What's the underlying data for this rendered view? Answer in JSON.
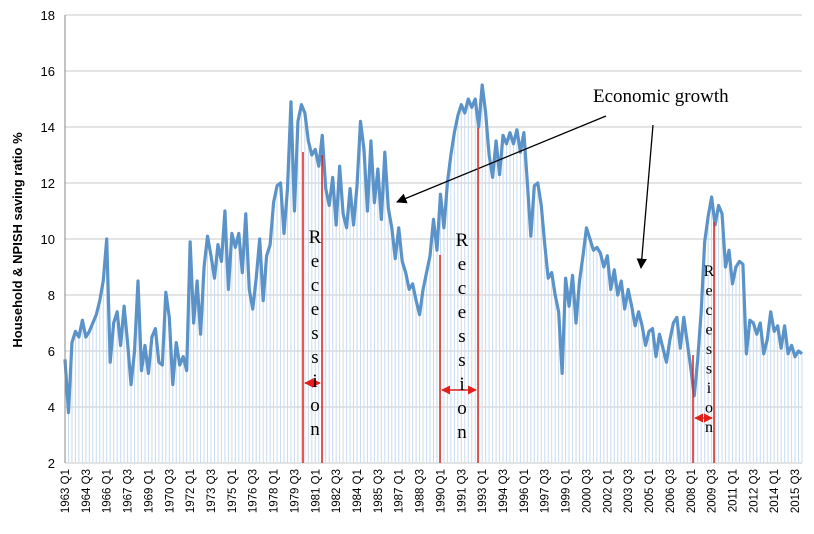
{
  "chart_data": {
    "type": "line",
    "y_label": "Household & NPISH saving ratio %",
    "color": "#5b93c8",
    "fill_color": "#c9dcef",
    "ylim": [
      2,
      18
    ],
    "yticks": [
      2,
      4,
      6,
      8,
      10,
      12,
      14,
      16,
      18
    ],
    "grid": true,
    "annotations": [
      "Economic growth",
      "Recession",
      "Recession",
      "Recession"
    ],
    "categories": [
      "1963 Q1",
      null,
      null,
      null,
      null,
      null,
      "1964 Q3",
      null,
      null,
      null,
      null,
      null,
      "1966 Q1",
      null,
      null,
      null,
      null,
      null,
      "1967 Q3",
      null,
      null,
      null,
      null,
      null,
      "1969 Q1",
      null,
      null,
      null,
      null,
      null,
      "1970 Q3",
      null,
      null,
      null,
      null,
      null,
      "1972 Q1",
      null,
      null,
      null,
      null,
      null,
      "1973 Q3",
      null,
      null,
      null,
      null,
      null,
      "1975 Q1",
      null,
      null,
      null,
      null,
      null,
      "1976 Q3",
      null,
      null,
      null,
      null,
      null,
      "1978 Q1",
      null,
      null,
      null,
      null,
      null,
      "1979 Q3",
      null,
      null,
      null,
      null,
      null,
      "1981 Q1",
      null,
      null,
      null,
      null,
      null,
      "1982 Q3",
      null,
      null,
      null,
      null,
      null,
      "1984 Q1",
      null,
      null,
      null,
      null,
      null,
      "1985 Q3",
      null,
      null,
      null,
      null,
      null,
      "1987 Q1",
      null,
      null,
      null,
      null,
      null,
      "1988 Q3",
      null,
      null,
      null,
      null,
      null,
      "1990 Q1",
      null,
      null,
      null,
      null,
      null,
      "1991 Q3",
      null,
      null,
      null,
      null,
      null,
      "1993 Q1",
      null,
      null,
      null,
      null,
      null,
      "1994 Q3",
      null,
      null,
      null,
      null,
      null,
      "1996 Q1",
      null,
      null,
      null,
      null,
      null,
      "1997 Q3",
      null,
      null,
      null,
      null,
      null,
      "1999 Q1",
      null,
      null,
      null,
      null,
      null,
      "2000 Q3",
      null,
      null,
      null,
      null,
      null,
      "2002 Q1",
      null,
      null,
      null,
      null,
      null,
      "2003 Q3",
      null,
      null,
      null,
      null,
      null,
      "2005 Q1",
      null,
      null,
      null,
      null,
      null,
      "2006 Q3",
      null,
      null,
      null,
      null,
      null,
      "2008 Q1",
      null,
      null,
      null,
      null,
      null,
      "2009 Q3",
      null,
      null,
      null,
      null,
      null,
      "2011 Q1",
      null,
      null,
      null,
      null,
      null,
      "2012 Q3",
      null,
      null,
      null,
      null,
      null,
      "2014 Q1",
      null,
      null,
      null,
      null,
      null,
      "2015 Q3",
      null,
      null
    ],
    "values": [
      5.7,
      3.8,
      6.3,
      6.7,
      6.5,
      7.1,
      6.5,
      6.7,
      7.0,
      7.3,
      7.8,
      8.5,
      10.0,
      5.6,
      7.0,
      7.4,
      6.2,
      7.6,
      6.3,
      4.8,
      6.0,
      8.5,
      5.3,
      6.2,
      5.2,
      6.5,
      6.8,
      5.6,
      5.5,
      8.1,
      7.2,
      4.8,
      6.3,
      5.5,
      5.8,
      5.3,
      9.9,
      7.0,
      8.5,
      6.6,
      9.0,
      10.1,
      9.4,
      8.6,
      9.8,
      9.2,
      11.0,
      8.2,
      10.2,
      9.7,
      10.2,
      8.8,
      10.9,
      8.2,
      7.5,
      8.6,
      10.0,
      7.8,
      9.4,
      9.8,
      11.3,
      11.9,
      12.0,
      10.2,
      11.8,
      14.9,
      11.0,
      14.2,
      14.8,
      14.5,
      13.5,
      13.0,
      13.2,
      12.6,
      13.7,
      11.8,
      11.2,
      12.2,
      10.5,
      12.6,
      10.9,
      10.4,
      11.8,
      10.5,
      11.9,
      14.2,
      13.2,
      11.0,
      13.5,
      11.3,
      12.5,
      10.7,
      13.1,
      11.1,
      10.4,
      9.3,
      10.4,
      9.2,
      8.8,
      8.2,
      8.4,
      7.8,
      7.3,
      8.2,
      8.8,
      9.4,
      10.7,
      9.6,
      11.6,
      10.4,
      12.0,
      13.0,
      13.8,
      14.4,
      14.8,
      14.5,
      15.0,
      14.7,
      15.0,
      14.0,
      15.5,
      14.5,
      13.0,
      12.2,
      13.5,
      12.3,
      13.7,
      13.4,
      13.8,
      13.4,
      13.9,
      13.1,
      13.8,
      12.0,
      10.1,
      11.9,
      12.0,
      11.2,
      9.8,
      8.6,
      8.8,
      8.0,
      7.4,
      5.2,
      8.6,
      7.6,
      8.7,
      7.0,
      8.5,
      9.4,
      10.4,
      10.0,
      9.6,
      9.7,
      9.5,
      9.0,
      9.4,
      8.2,
      8.9,
      8.0,
      8.5,
      7.5,
      8.2,
      7.6,
      6.9,
      7.4,
      6.9,
      6.2,
      6.7,
      6.8,
      5.8,
      6.6,
      6.1,
      5.6,
      6.4,
      7.0,
      7.2,
      6.1,
      7.2,
      6.3,
      5.4,
      4.4,
      5.7,
      7.4,
      9.9,
      10.8,
      11.5,
      10.5,
      11.2,
      10.9,
      9.0,
      9.6,
      8.4,
      9.0,
      9.2,
      9.1,
      5.9,
      7.1,
      7.0,
      6.6,
      7.0,
      5.9,
      6.4,
      7.4,
      6.7,
      6.9,
      6.1,
      6.9,
      5.9,
      6.2,
      5.8,
      6.0,
      5.9
    ]
  }
}
